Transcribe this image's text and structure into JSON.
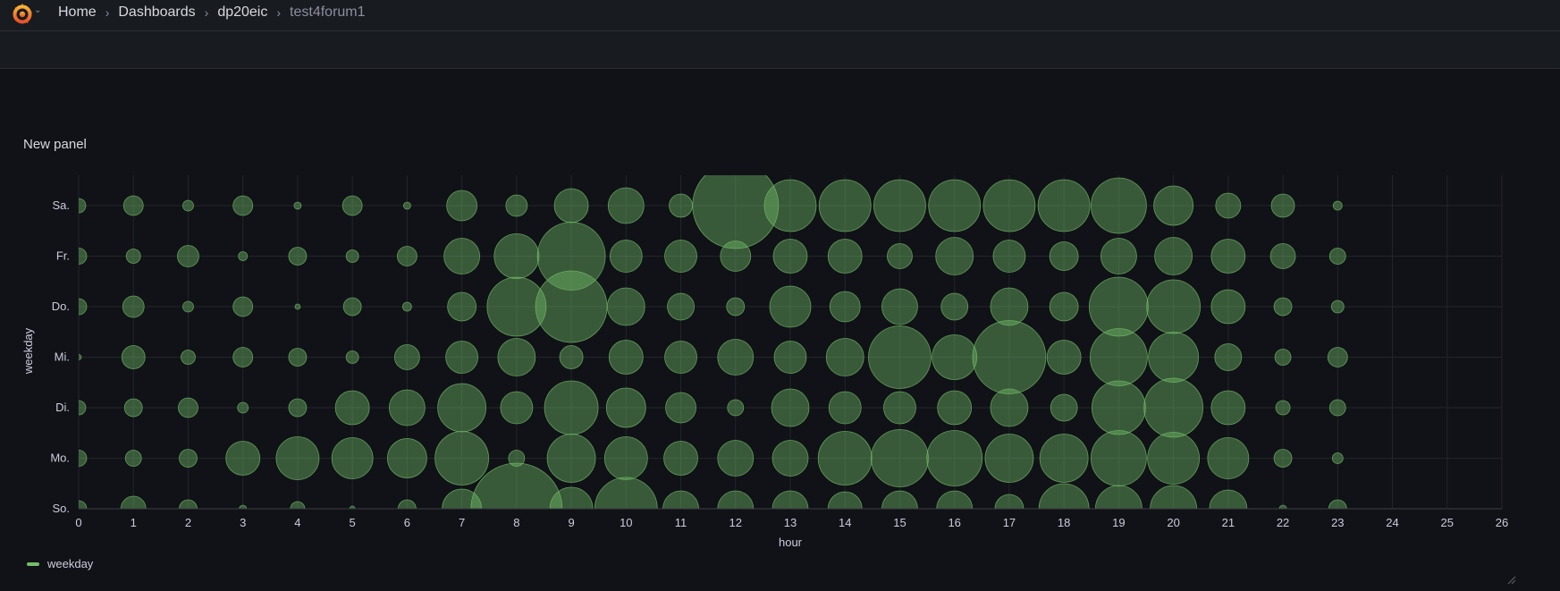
{
  "breadcrumb": {
    "home": "Home",
    "dashboards": "Dashboards",
    "folder": "dp20eic",
    "dashboard": "test4forum1"
  },
  "panel": {
    "title": "New panel",
    "legend_label": "weekday"
  },
  "colors": {
    "bubble": "#73bf69",
    "background": "#111217",
    "grid": "#22252b"
  },
  "chart_data": {
    "type": "scatter",
    "xlabel": "hour",
    "ylabel": "weekday",
    "xlim": [
      0,
      26
    ],
    "x_ticks": [
      0,
      1,
      2,
      3,
      4,
      5,
      6,
      7,
      8,
      9,
      10,
      11,
      12,
      13,
      14,
      15,
      16,
      17,
      18,
      19,
      20,
      21,
      22,
      23,
      24,
      25,
      26
    ],
    "categories": [
      "Sa.",
      "Fr.",
      "Do.",
      "Mi.",
      "Di.",
      "Mo.",
      "So."
    ],
    "size_unit": "relative",
    "series": [
      {
        "name": "weekday",
        "points": [
          {
            "y": "Sa.",
            "x": 0,
            "size": 8
          },
          {
            "y": "Sa.",
            "x": 1,
            "size": 11
          },
          {
            "y": "Sa.",
            "x": 2,
            "size": 6
          },
          {
            "y": "Sa.",
            "x": 3,
            "size": 11
          },
          {
            "y": "Sa.",
            "x": 4,
            "size": 4
          },
          {
            "y": "Sa.",
            "x": 5,
            "size": 11
          },
          {
            "y": "Sa.",
            "x": 6,
            "size": 4
          },
          {
            "y": "Sa.",
            "x": 7,
            "size": 17
          },
          {
            "y": "Sa.",
            "x": 8,
            "size": 12
          },
          {
            "y": "Sa.",
            "x": 9,
            "size": 19
          },
          {
            "y": "Sa.",
            "x": 10,
            "size": 20
          },
          {
            "y": "Sa.",
            "x": 11,
            "size": 13
          },
          {
            "y": "Sa.",
            "x": 12,
            "size": 48
          },
          {
            "y": "Sa.",
            "x": 13,
            "size": 29
          },
          {
            "y": "Sa.",
            "x": 14,
            "size": 29
          },
          {
            "y": "Sa.",
            "x": 15,
            "size": 29
          },
          {
            "y": "Sa.",
            "x": 16,
            "size": 29
          },
          {
            "y": "Sa.",
            "x": 17,
            "size": 29
          },
          {
            "y": "Sa.",
            "x": 18,
            "size": 29
          },
          {
            "y": "Sa.",
            "x": 19,
            "size": 31
          },
          {
            "y": "Sa.",
            "x": 20,
            "size": 22
          },
          {
            "y": "Sa.",
            "x": 21,
            "size": 14
          },
          {
            "y": "Sa.",
            "x": 22,
            "size": 13
          },
          {
            "y": "Sa.",
            "x": 23,
            "size": 5
          },
          {
            "y": "Fr.",
            "x": 0,
            "size": 9
          },
          {
            "y": "Fr.",
            "x": 1,
            "size": 8
          },
          {
            "y": "Fr.",
            "x": 2,
            "size": 12
          },
          {
            "y": "Fr.",
            "x": 3,
            "size": 5
          },
          {
            "y": "Fr.",
            "x": 4,
            "size": 10
          },
          {
            "y": "Fr.",
            "x": 5,
            "size": 7
          },
          {
            "y": "Fr.",
            "x": 6,
            "size": 11
          },
          {
            "y": "Fr.",
            "x": 7,
            "size": 20
          },
          {
            "y": "Fr.",
            "x": 8,
            "size": 25
          },
          {
            "y": "Fr.",
            "x": 9,
            "size": 38
          },
          {
            "y": "Fr.",
            "x": 10,
            "size": 18
          },
          {
            "y": "Fr.",
            "x": 11,
            "size": 18
          },
          {
            "y": "Fr.",
            "x": 12,
            "size": 17
          },
          {
            "y": "Fr.",
            "x": 13,
            "size": 19
          },
          {
            "y": "Fr.",
            "x": 14,
            "size": 19
          },
          {
            "y": "Fr.",
            "x": 15,
            "size": 14
          },
          {
            "y": "Fr.",
            "x": 16,
            "size": 21
          },
          {
            "y": "Fr.",
            "x": 17,
            "size": 18
          },
          {
            "y": "Fr.",
            "x": 18,
            "size": 16
          },
          {
            "y": "Fr.",
            "x": 19,
            "size": 20
          },
          {
            "y": "Fr.",
            "x": 20,
            "size": 21
          },
          {
            "y": "Fr.",
            "x": 21,
            "size": 19
          },
          {
            "y": "Fr.",
            "x": 22,
            "size": 14
          },
          {
            "y": "Fr.",
            "x": 23,
            "size": 9
          },
          {
            "y": "Do.",
            "x": 0,
            "size": 9
          },
          {
            "y": "Do.",
            "x": 1,
            "size": 12
          },
          {
            "y": "Do.",
            "x": 2,
            "size": 6
          },
          {
            "y": "Do.",
            "x": 3,
            "size": 11
          },
          {
            "y": "Do.",
            "x": 4,
            "size": 3
          },
          {
            "y": "Do.",
            "x": 5,
            "size": 10
          },
          {
            "y": "Do.",
            "x": 6,
            "size": 5
          },
          {
            "y": "Do.",
            "x": 7,
            "size": 16
          },
          {
            "y": "Do.",
            "x": 8,
            "size": 33
          },
          {
            "y": "Do.",
            "x": 9,
            "size": 40
          },
          {
            "y": "Do.",
            "x": 10,
            "size": 21
          },
          {
            "y": "Do.",
            "x": 11,
            "size": 15
          },
          {
            "y": "Do.",
            "x": 12,
            "size": 10
          },
          {
            "y": "Do.",
            "x": 13,
            "size": 23
          },
          {
            "y": "Do.",
            "x": 14,
            "size": 17
          },
          {
            "y": "Do.",
            "x": 15,
            "size": 20
          },
          {
            "y": "Do.",
            "x": 16,
            "size": 15
          },
          {
            "y": "Do.",
            "x": 17,
            "size": 21
          },
          {
            "y": "Do.",
            "x": 18,
            "size": 16
          },
          {
            "y": "Do.",
            "x": 19,
            "size": 33
          },
          {
            "y": "Do.",
            "x": 20,
            "size": 30
          },
          {
            "y": "Do.",
            "x": 21,
            "size": 19
          },
          {
            "y": "Do.",
            "x": 22,
            "size": 10
          },
          {
            "y": "Do.",
            "x": 23,
            "size": 7
          },
          {
            "y": "Mi.",
            "x": 0,
            "size": 3
          },
          {
            "y": "Mi.",
            "x": 1,
            "size": 13
          },
          {
            "y": "Mi.",
            "x": 2,
            "size": 8
          },
          {
            "y": "Mi.",
            "x": 3,
            "size": 11
          },
          {
            "y": "Mi.",
            "x": 4,
            "size": 10
          },
          {
            "y": "Mi.",
            "x": 5,
            "size": 7
          },
          {
            "y": "Mi.",
            "x": 6,
            "size": 14
          },
          {
            "y": "Mi.",
            "x": 7,
            "size": 18
          },
          {
            "y": "Mi.",
            "x": 8,
            "size": 21
          },
          {
            "y": "Mi.",
            "x": 9,
            "size": 13
          },
          {
            "y": "Mi.",
            "x": 10,
            "size": 19
          },
          {
            "y": "Mi.",
            "x": 11,
            "size": 18
          },
          {
            "y": "Mi.",
            "x": 12,
            "size": 20
          },
          {
            "y": "Mi.",
            "x": 13,
            "size": 18
          },
          {
            "y": "Mi.",
            "x": 14,
            "size": 21
          },
          {
            "y": "Mi.",
            "x": 15,
            "size": 35
          },
          {
            "y": "Mi.",
            "x": 16,
            "size": 25
          },
          {
            "y": "Mi.",
            "x": 17,
            "size": 41
          },
          {
            "y": "Mi.",
            "x": 18,
            "size": 19
          },
          {
            "y": "Mi.",
            "x": 19,
            "size": 32
          },
          {
            "y": "Mi.",
            "x": 20,
            "size": 28
          },
          {
            "y": "Mi.",
            "x": 21,
            "size": 15
          },
          {
            "y": "Mi.",
            "x": 22,
            "size": 9
          },
          {
            "y": "Mi.",
            "x": 23,
            "size": 11
          },
          {
            "y": "Di.",
            "x": 0,
            "size": 8
          },
          {
            "y": "Di.",
            "x": 1,
            "size": 10
          },
          {
            "y": "Di.",
            "x": 2,
            "size": 11
          },
          {
            "y": "Di.",
            "x": 3,
            "size": 6
          },
          {
            "y": "Di.",
            "x": 4,
            "size": 10
          },
          {
            "y": "Di.",
            "x": 5,
            "size": 19
          },
          {
            "y": "Di.",
            "x": 6,
            "size": 20
          },
          {
            "y": "Di.",
            "x": 7,
            "size": 27
          },
          {
            "y": "Di.",
            "x": 8,
            "size": 18
          },
          {
            "y": "Di.",
            "x": 9,
            "size": 30
          },
          {
            "y": "Di.",
            "x": 10,
            "size": 22
          },
          {
            "y": "Di.",
            "x": 11,
            "size": 17
          },
          {
            "y": "Di.",
            "x": 12,
            "size": 9
          },
          {
            "y": "Di.",
            "x": 13,
            "size": 21
          },
          {
            "y": "Di.",
            "x": 14,
            "size": 18
          },
          {
            "y": "Di.",
            "x": 15,
            "size": 18
          },
          {
            "y": "Di.",
            "x": 16,
            "size": 19
          },
          {
            "y": "Di.",
            "x": 17,
            "size": 21
          },
          {
            "y": "Di.",
            "x": 18,
            "size": 15
          },
          {
            "y": "Di.",
            "x": 19,
            "size": 30
          },
          {
            "y": "Di.",
            "x": 20,
            "size": 33
          },
          {
            "y": "Di.",
            "x": 21,
            "size": 19
          },
          {
            "y": "Di.",
            "x": 22,
            "size": 8
          },
          {
            "y": "Di.",
            "x": 23,
            "size": 9
          },
          {
            "y": "Mo.",
            "x": 0,
            "size": 9
          },
          {
            "y": "Mo.",
            "x": 1,
            "size": 9
          },
          {
            "y": "Mo.",
            "x": 2,
            "size": 10
          },
          {
            "y": "Mo.",
            "x": 3,
            "size": 19
          },
          {
            "y": "Mo.",
            "x": 4,
            "size": 24
          },
          {
            "y": "Mo.",
            "x": 5,
            "size": 23
          },
          {
            "y": "Mo.",
            "x": 6,
            "size": 22
          },
          {
            "y": "Mo.",
            "x": 7,
            "size": 30
          },
          {
            "y": "Mo.",
            "x": 8,
            "size": 9
          },
          {
            "y": "Mo.",
            "x": 9,
            "size": 27
          },
          {
            "y": "Mo.",
            "x": 10,
            "size": 24
          },
          {
            "y": "Mo.",
            "x": 11,
            "size": 19
          },
          {
            "y": "Mo.",
            "x": 12,
            "size": 20
          },
          {
            "y": "Mo.",
            "x": 13,
            "size": 20
          },
          {
            "y": "Mo.",
            "x": 14,
            "size": 30
          },
          {
            "y": "Mo.",
            "x": 15,
            "size": 32
          },
          {
            "y": "Mo.",
            "x": 16,
            "size": 31
          },
          {
            "y": "Mo.",
            "x": 17,
            "size": 27
          },
          {
            "y": "Mo.",
            "x": 18,
            "size": 27
          },
          {
            "y": "Mo.",
            "x": 19,
            "size": 31
          },
          {
            "y": "Mo.",
            "x": 20,
            "size": 29
          },
          {
            "y": "Mo.",
            "x": 21,
            "size": 23
          },
          {
            "y": "Mo.",
            "x": 22,
            "size": 10
          },
          {
            "y": "Mo.",
            "x": 23,
            "size": 6
          },
          {
            "y": "So.",
            "x": 0,
            "size": 9
          },
          {
            "y": "So.",
            "x": 1,
            "size": 14
          },
          {
            "y": "So.",
            "x": 2,
            "size": 10
          },
          {
            "y": "So.",
            "x": 3,
            "size": 4
          },
          {
            "y": "So.",
            "x": 4,
            "size": 8
          },
          {
            "y": "So.",
            "x": 5,
            "size": 3
          },
          {
            "y": "So.",
            "x": 6,
            "size": 10
          },
          {
            "y": "So.",
            "x": 7,
            "size": 22
          },
          {
            "y": "So.",
            "x": 8,
            "size": 51
          },
          {
            "y": "So.",
            "x": 9,
            "size": 24
          },
          {
            "y": "So.",
            "x": 10,
            "size": 35
          },
          {
            "y": "So.",
            "x": 11,
            "size": 20
          },
          {
            "y": "So.",
            "x": 12,
            "size": 20
          },
          {
            "y": "So.",
            "x": 13,
            "size": 20
          },
          {
            "y": "So.",
            "x": 14,
            "size": 19
          },
          {
            "y": "So.",
            "x": 15,
            "size": 20
          },
          {
            "y": "So.",
            "x": 16,
            "size": 20
          },
          {
            "y": "So.",
            "x": 17,
            "size": 16
          },
          {
            "y": "So.",
            "x": 18,
            "size": 28
          },
          {
            "y": "So.",
            "x": 19,
            "size": 26
          },
          {
            "y": "So.",
            "x": 20,
            "size": 26
          },
          {
            "y": "So.",
            "x": 21,
            "size": 21
          },
          {
            "y": "So.",
            "x": 22,
            "size": 4
          },
          {
            "y": "So.",
            "x": 23,
            "size": 10
          }
        ]
      }
    ]
  }
}
